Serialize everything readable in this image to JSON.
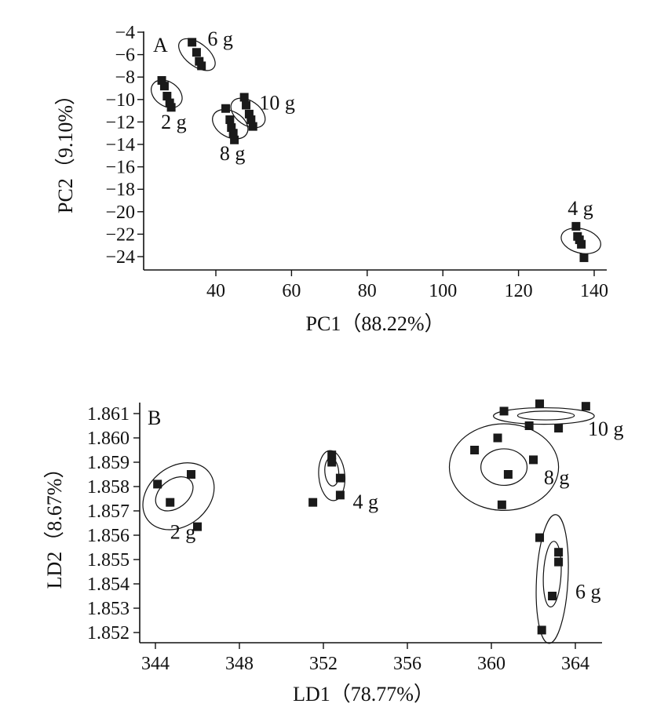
{
  "chart_data": [
    {
      "panel": "A",
      "type": "scatter",
      "xlabel": "PC1（88.22%）",
      "ylabel": "PC2（9.10%）",
      "xlim": [
        20,
        140
      ],
      "ylim": [
        -25.5,
        -4
      ],
      "xticks": [
        40,
        60,
        80,
        100,
        120,
        140
      ],
      "yticks": [
        -4,
        -6,
        -8,
        -10,
        -12,
        -14,
        -16,
        -18,
        -20,
        -22,
        -24
      ],
      "groups": [
        {
          "name": "6 g",
          "points": [
            [
              33.7,
              -4.9
            ],
            [
              34.9,
              -5.8
            ],
            [
              35.6,
              -6.6
            ],
            [
              36.2,
              -7.0
            ]
          ],
          "ellipses": [
            {
              "cx": 35.0,
              "cy": -6.0,
              "rx": 3.0,
              "ry": 1.9,
              "angle": -52
            }
          ],
          "label_pos": [
            37.8,
            -5.2
          ]
        },
        {
          "name": "2 g",
          "points": [
            [
              25.7,
              -8.3
            ],
            [
              26.4,
              -8.8
            ],
            [
              27.1,
              -9.7
            ],
            [
              27.8,
              -10.3
            ],
            [
              28.2,
              -10.7
            ]
          ],
          "ellipses": [
            {
              "cx": 27.0,
              "cy": -9.5,
              "rx": 3.2,
              "ry": 1.5,
              "angle": -55
            }
          ],
          "label_pos": [
            25.5,
            -12.6
          ]
        },
        {
          "name": "10 g",
          "points": [
            [
              47.5,
              -9.8
            ],
            [
              48.0,
              -10.5
            ],
            [
              48.8,
              -11.3
            ],
            [
              49.3,
              -11.8
            ],
            [
              49.8,
              -12.4
            ]
          ],
          "ellipses": [
            {
              "cx": 48.5,
              "cy": -11.2,
              "rx": 3.2,
              "ry": 1.7,
              "angle": -55
            }
          ],
          "label_pos": [
            51.5,
            -10.9
          ]
        },
        {
          "name": "8 g",
          "points": [
            [
              42.6,
              -10.8
            ],
            [
              43.7,
              -11.8
            ],
            [
              44.1,
              -12.5
            ],
            [
              44.6,
              -13.0
            ],
            [
              44.9,
              -13.6
            ]
          ],
          "ellipses": [
            {
              "cx": 43.8,
              "cy": -12.2,
              "rx": 3.4,
              "ry": 1.7,
              "angle": -60
            }
          ],
          "label_pos": [
            41.0,
            -15.4
          ]
        },
        {
          "name": "4 g",
          "points": [
            [
              135.2,
              -21.3
            ],
            [
              135.6,
              -22.2
            ],
            [
              136.1,
              -22.5
            ],
            [
              136.6,
              -22.9
            ],
            [
              137.3,
              -24.1
            ]
          ],
          "ellipses": [
            {
              "cx": 136.5,
              "cy": -22.6,
              "rx": 3.2,
              "ry": 1.8,
              "angle": -75
            }
          ],
          "label_pos": [
            133.0,
            -20.3
          ]
        }
      ]
    },
    {
      "panel": "B",
      "type": "scatter",
      "xlabel": "LD1（78.77%）",
      "ylabel": "LD2（8.67%）",
      "xlim": [
        343.5,
        365.3
      ],
      "ylim": [
        1.8518,
        1.8615
      ],
      "xticks": [
        344,
        348,
        352,
        356,
        360,
        364
      ],
      "yticks": [
        1.861,
        1.86,
        1.859,
        1.858,
        1.857,
        1.856,
        1.855,
        1.854,
        1.853,
        1.852
      ],
      "ytick_labels": [
        "1.861",
        "1.860",
        "1.859",
        "1.858",
        "1.857",
        "1.856",
        "1.855",
        "1.854",
        "1.853",
        "1.852"
      ],
      "groups": [
        {
          "name": "2 g",
          "points": [
            [
              344.1,
              1.8581
            ],
            [
              344.7,
              1.85735
            ],
            [
              345.7,
              1.8585
            ],
            [
              346.0,
              1.85635
            ]
          ],
          "ellipses": [
            {
              "cx": 345.1,
              "cy": 1.8576,
              "rx": 1.85,
              "ry": 0.00122,
              "angle": -38
            },
            {
              "cx": 344.9,
              "cy": 1.8577,
              "rx": 1.0,
              "ry": 0.00058,
              "angle": -38
            }
          ],
          "label_pos": [
            344.7,
            1.85585
          ]
        },
        {
          "name": "4 g",
          "points": [
            [
              351.5,
              1.85735
            ],
            [
              352.4,
              1.8593
            ],
            [
              352.4,
              1.859
            ],
            [
              352.8,
              1.85835
            ],
            [
              352.8,
              1.85765
            ]
          ],
          "ellipses": [
            {
              "cx": 352.4,
              "cy": 1.85845,
              "rx": 0.62,
              "ry": 0.00103,
              "angle": -5
            },
            {
              "cx": 352.4,
              "cy": 1.8586,
              "rx": 0.33,
              "ry": 0.00058,
              "angle": -5
            }
          ],
          "label_pos": [
            353.4,
            1.8571
          ]
        },
        {
          "name": "10 g",
          "points": [
            [
              360.6,
              1.8611
            ],
            [
              361.8,
              1.8605
            ],
            [
              362.3,
              1.8614
            ],
            [
              363.2,
              1.8604
            ],
            [
              364.5,
              1.8613
            ]
          ],
          "ellipses": [
            {
              "cx": 362.5,
              "cy": 1.8609,
              "rx": 2.4,
              "ry": 0.00034,
              "angle": 0
            },
            {
              "cx": 362.6,
              "cy": 1.86092,
              "rx": 1.35,
              "ry": 0.00018,
              "angle": 0
            }
          ],
          "label_pos": [
            364.6,
            1.8601
          ]
        },
        {
          "name": "8 g",
          "points": [
            [
              359.2,
              1.8595
            ],
            [
              360.3,
              1.86
            ],
            [
              360.8,
              1.8585
            ],
            [
              362.0,
              1.8591
            ],
            [
              360.5,
              1.85725
            ]
          ],
          "ellipses": [
            {
              "cx": 360.6,
              "cy": 1.8588,
              "rx": 2.6,
              "ry": 0.00178,
              "angle": 0
            },
            {
              "cx": 360.6,
              "cy": 1.8588,
              "rx": 1.1,
              "ry": 0.00075,
              "angle": 0
            }
          ],
          "label_pos": [
            362.5,
            1.8581
          ]
        },
        {
          "name": "6 g",
          "points": [
            [
              362.3,
              1.8559
            ],
            [
              363.2,
              1.8553
            ],
            [
              363.2,
              1.8549
            ],
            [
              362.9,
              1.8535
            ],
            [
              362.4,
              1.8521
            ]
          ],
          "ellipses": [
            {
              "cx": 362.9,
              "cy": 1.8542,
              "rx": 0.75,
              "ry": 0.00265,
              "angle": 3
            },
            {
              "cx": 362.9,
              "cy": 1.8544,
              "rx": 0.42,
              "ry": 0.00135,
              "angle": 3
            }
          ],
          "label_pos": [
            364.0,
            1.8534
          ]
        }
      ]
    }
  ]
}
